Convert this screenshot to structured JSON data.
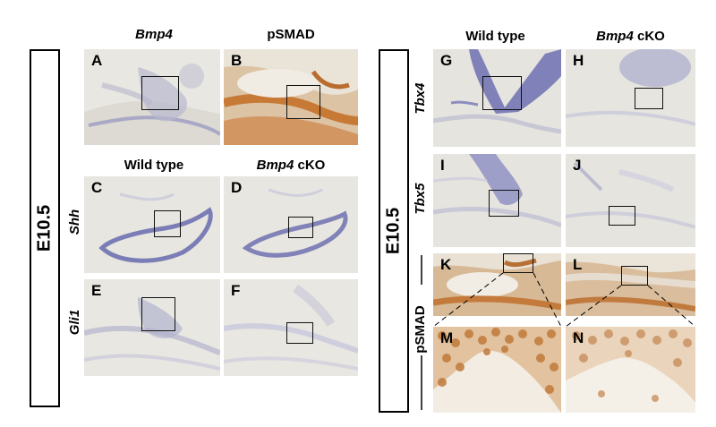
{
  "stage_labels": {
    "left": "E10.5",
    "right": "E10.5"
  },
  "left_group": {
    "col_heads_top": {
      "a_gene": "Bmp4",
      "b_label": "pSMAD"
    },
    "col_heads_mid": {
      "wt": "Wild type",
      "cko_gene": "Bmp4",
      "cko_suffix": " cKO"
    },
    "row_heads": {
      "shh": "Shh",
      "gli1": "Gli1"
    },
    "panels": {
      "A": "A",
      "B": "B",
      "C": "C",
      "D": "D",
      "E": "E",
      "F": "F"
    }
  },
  "right_group": {
    "col_heads": {
      "wt": "Wild type",
      "cko_gene": "Bmp4",
      "cko_suffix": " cKO"
    },
    "row_heads": {
      "tbx4": "Tbx4",
      "tbx5": "Tbx5",
      "psmad": "pSMAD"
    },
    "panels": {
      "G": "G",
      "H": "H",
      "I": "I",
      "J": "J",
      "K": "K",
      "L": "L",
      "M": "M",
      "N": "N"
    }
  },
  "colors": {
    "stain_blue": "#6f72b4",
    "stain_brown": "#b9773d",
    "tissue_bg": "#e6e5df"
  }
}
